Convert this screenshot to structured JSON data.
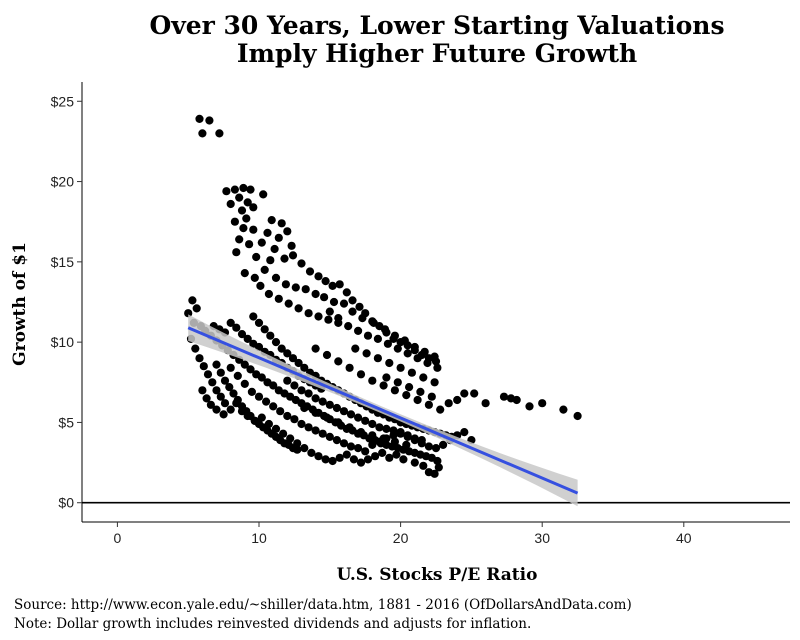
{
  "chart_data": {
    "type": "scatter",
    "title_lines": [
      "Over 30 Years, Lower Starting Valuations",
      "Imply Higher Future Growth"
    ],
    "xlabel": "U.S. Stocks P/E Ratio",
    "ylabel": "Growth of $1",
    "xlim": [
      -2.5,
      47.5
    ],
    "ylim": [
      -1.2,
      26.2
    ],
    "xticks": [
      0,
      10,
      20,
      30,
      40
    ],
    "yticks": [
      0,
      5,
      10,
      15,
      20,
      25
    ],
    "ytick_labels": [
      "$0",
      "$5",
      "$10",
      "$15",
      "$20",
      "$25"
    ],
    "grid": false,
    "hline_y": 0,
    "point_color": "#000000",
    "trend": {
      "x": [
        5,
        32.5
      ],
      "y": [
        10.9,
        0.6
      ],
      "color": "#3650e0",
      "band_color": "#c8c8c8"
    },
    "points": [
      [
        5.8,
        23.9
      ],
      [
        6.5,
        23.8
      ],
      [
        6.0,
        23.0
      ],
      [
        7.2,
        23.0
      ],
      [
        7.7,
        19.4
      ],
      [
        8.3,
        19.5
      ],
      [
        8.9,
        19.6
      ],
      [
        9.4,
        19.5
      ],
      [
        10.3,
        19.2
      ],
      [
        8.6,
        19.0
      ],
      [
        9.2,
        18.7
      ],
      [
        9.6,
        18.4
      ],
      [
        8.0,
        18.6
      ],
      [
        8.8,
        18.2
      ],
      [
        9.1,
        17.7
      ],
      [
        10.9,
        17.6
      ],
      [
        11.6,
        17.4
      ],
      [
        8.3,
        17.5
      ],
      [
        8.9,
        17.1
      ],
      [
        9.6,
        17.0
      ],
      [
        10.6,
        16.8
      ],
      [
        11.4,
        16.5
      ],
      [
        12.0,
        16.9
      ],
      [
        8.6,
        16.4
      ],
      [
        9.3,
        16.1
      ],
      [
        10.2,
        16.2
      ],
      [
        11.1,
        15.8
      ],
      [
        12.3,
        16.0
      ],
      [
        8.4,
        15.6
      ],
      [
        9.8,
        15.3
      ],
      [
        10.8,
        15.1
      ],
      [
        11.8,
        15.2
      ],
      [
        12.4,
        15.4
      ],
      [
        13.0,
        14.9
      ],
      [
        13.6,
        14.4
      ],
      [
        14.2,
        14.1
      ],
      [
        14.7,
        13.8
      ],
      [
        15.2,
        13.5
      ],
      [
        15.7,
        13.6
      ],
      [
        16.2,
        13.1
      ],
      [
        16.6,
        12.6
      ],
      [
        17.1,
        12.2
      ],
      [
        17.5,
        11.8
      ],
      [
        18.0,
        11.3
      ],
      [
        18.5,
        11.0
      ],
      [
        19.0,
        10.6
      ],
      [
        19.5,
        10.2
      ],
      [
        20.0,
        10.0
      ],
      [
        20.5,
        9.8
      ],
      [
        21.0,
        9.5
      ],
      [
        21.5,
        9.2
      ],
      [
        22.0,
        9.0
      ],
      [
        22.5,
        8.8
      ],
      [
        9.0,
        14.3
      ],
      [
        9.7,
        14.0
      ],
      [
        10.4,
        14.5
      ],
      [
        11.2,
        14.0
      ],
      [
        11.9,
        13.6
      ],
      [
        12.6,
        13.4
      ],
      [
        13.3,
        13.3
      ],
      [
        14.0,
        13.0
      ],
      [
        14.6,
        12.8
      ],
      [
        15.3,
        12.5
      ],
      [
        10.1,
        13.5
      ],
      [
        10.7,
        13.0
      ],
      [
        11.4,
        12.7
      ],
      [
        12.1,
        12.4
      ],
      [
        12.8,
        12.1
      ],
      [
        13.5,
        11.8
      ],
      [
        14.2,
        11.6
      ],
      [
        14.9,
        11.4
      ],
      [
        15.6,
        11.2
      ],
      [
        16.3,
        11.0
      ],
      [
        17.0,
        10.7
      ],
      [
        17.7,
        10.4
      ],
      [
        18.4,
        10.2
      ],
      [
        19.1,
        9.9
      ],
      [
        19.8,
        9.6
      ],
      [
        20.5,
        9.3
      ],
      [
        21.2,
        9.0
      ],
      [
        21.9,
        8.7
      ],
      [
        22.6,
        8.4
      ],
      [
        5.0,
        11.8
      ],
      [
        5.3,
        12.6
      ],
      [
        5.6,
        12.1
      ],
      [
        5.4,
        11.2
      ],
      [
        5.9,
        11.0
      ],
      [
        6.2,
        10.7
      ],
      [
        6.6,
        10.4
      ],
      [
        7.0,
        10.1
      ],
      [
        7.4,
        9.8
      ],
      [
        7.8,
        9.5
      ],
      [
        8.2,
        9.2
      ],
      [
        8.6,
        8.9
      ],
      [
        9.0,
        8.6
      ],
      [
        9.4,
        8.3
      ],
      [
        9.8,
        8.0
      ],
      [
        10.2,
        7.8
      ],
      [
        10.6,
        7.5
      ],
      [
        11.0,
        7.3
      ],
      [
        11.4,
        7.0
      ],
      [
        11.8,
        6.8
      ],
      [
        12.2,
        6.6
      ],
      [
        12.6,
        6.4
      ],
      [
        13.0,
        6.2
      ],
      [
        13.4,
        6.0
      ],
      [
        13.8,
        5.8
      ],
      [
        14.2,
        5.6
      ],
      [
        14.6,
        5.4
      ],
      [
        15.0,
        5.2
      ],
      [
        15.4,
        5.0
      ],
      [
        15.8,
        4.8
      ],
      [
        16.2,
        4.6
      ],
      [
        16.6,
        4.5
      ],
      [
        17.0,
        4.3
      ],
      [
        17.4,
        4.2
      ],
      [
        17.8,
        4.0
      ],
      [
        18.2,
        3.9
      ],
      [
        18.6,
        3.7
      ],
      [
        19.0,
        3.6
      ],
      [
        19.4,
        3.5
      ],
      [
        19.8,
        3.4
      ],
      [
        20.2,
        3.3
      ],
      [
        20.6,
        3.2
      ],
      [
        21.0,
        3.1
      ],
      [
        21.4,
        3.0
      ],
      [
        21.8,
        2.9
      ],
      [
        22.2,
        2.8
      ],
      [
        22.6,
        2.6
      ],
      [
        5.2,
        10.2
      ],
      [
        5.5,
        9.6
      ],
      [
        5.8,
        9.0
      ],
      [
        6.1,
        8.5
      ],
      [
        6.4,
        8.0
      ],
      [
        6.7,
        7.5
      ],
      [
        7.0,
        7.0
      ],
      [
        7.3,
        6.6
      ],
      [
        7.6,
        6.2
      ],
      [
        6.0,
        7.0
      ],
      [
        6.3,
        6.5
      ],
      [
        6.6,
        6.1
      ],
      [
        7.0,
        5.8
      ],
      [
        7.5,
        5.5
      ],
      [
        8.0,
        5.8
      ],
      [
        8.4,
        6.2
      ],
      [
        8.8,
        5.7
      ],
      [
        9.2,
        5.4
      ],
      [
        9.7,
        5.1
      ],
      [
        10.2,
        5.3
      ],
      [
        10.7,
        4.9
      ],
      [
        11.2,
        4.6
      ],
      [
        11.7,
        4.3
      ],
      [
        12.2,
        4.0
      ],
      [
        12.7,
        3.7
      ],
      [
        13.2,
        3.4
      ],
      [
        13.7,
        3.1
      ],
      [
        14.2,
        2.9
      ],
      [
        14.7,
        2.7
      ],
      [
        15.2,
        2.6
      ],
      [
        15.7,
        2.8
      ],
      [
        16.2,
        3.0
      ],
      [
        16.7,
        2.7
      ],
      [
        17.2,
        2.5
      ],
      [
        17.7,
        2.7
      ],
      [
        18.2,
        2.9
      ],
      [
        18.7,
        3.1
      ],
      [
        19.2,
        2.8
      ],
      [
        19.7,
        3.0
      ],
      [
        20.2,
        2.7
      ],
      [
        21.0,
        2.5
      ],
      [
        21.6,
        2.3
      ],
      [
        22.0,
        1.9
      ],
      [
        22.4,
        1.8
      ],
      [
        22.7,
        2.2
      ],
      [
        8.0,
        8.4
      ],
      [
        8.5,
        7.9
      ],
      [
        9.0,
        7.4
      ],
      [
        9.5,
        6.9
      ],
      [
        10.0,
        6.6
      ],
      [
        10.5,
        6.3
      ],
      [
        11.0,
        6.0
      ],
      [
        11.5,
        5.7
      ],
      [
        12.0,
        5.4
      ],
      [
        12.5,
        5.2
      ],
      [
        13.0,
        4.9
      ],
      [
        13.5,
        4.7
      ],
      [
        14.0,
        4.5
      ],
      [
        14.5,
        4.3
      ],
      [
        15.0,
        4.1
      ],
      [
        15.5,
        3.9
      ],
      [
        16.0,
        3.7
      ],
      [
        16.5,
        3.5
      ],
      [
        17.0,
        3.4
      ],
      [
        17.5,
        3.2
      ],
      [
        18.0,
        3.6
      ],
      [
        18.5,
        3.8
      ],
      [
        19.0,
        4.0
      ],
      [
        19.5,
        4.2
      ],
      [
        20.0,
        4.4
      ],
      [
        20.5,
        4.1
      ],
      [
        21.0,
        3.9
      ],
      [
        21.5,
        3.7
      ],
      [
        22.0,
        3.5
      ],
      [
        22.5,
        3.4
      ],
      [
        23.0,
        3.6
      ],
      [
        23.5,
        3.9
      ],
      [
        24.0,
        4.2
      ],
      [
        24.5,
        4.4
      ],
      [
        25.0,
        3.9
      ],
      [
        9.6,
        11.6
      ],
      [
        10.0,
        11.2
      ],
      [
        10.4,
        10.8
      ],
      [
        10.8,
        10.4
      ],
      [
        11.2,
        10.0
      ],
      [
        11.6,
        9.6
      ],
      [
        12.0,
        9.3
      ],
      [
        12.4,
        9.0
      ],
      [
        12.8,
        8.7
      ],
      [
        13.2,
        8.4
      ],
      [
        13.6,
        8.1
      ],
      [
        14.0,
        7.9
      ],
      [
        14.4,
        7.6
      ],
      [
        14.8,
        7.4
      ],
      [
        15.2,
        7.2
      ],
      [
        15.6,
        7.0
      ],
      [
        16.0,
        6.8
      ],
      [
        16.4,
        6.6
      ],
      [
        16.8,
        6.4
      ],
      [
        17.2,
        6.2
      ],
      [
        17.6,
        6.0
      ],
      [
        18.0,
        5.8
      ],
      [
        18.4,
        5.6
      ],
      [
        18.8,
        5.5
      ],
      [
        19.2,
        5.3
      ],
      [
        19.6,
        5.2
      ],
      [
        20.0,
        5.0
      ],
      [
        20.4,
        4.9
      ],
      [
        20.8,
        4.8
      ],
      [
        21.2,
        4.7
      ],
      [
        21.6,
        4.6
      ],
      [
        22.0,
        4.5
      ],
      [
        22.4,
        4.4
      ],
      [
        22.8,
        4.3
      ],
      [
        23.2,
        4.2
      ],
      [
        23.6,
        4.1
      ],
      [
        12.0,
        7.6
      ],
      [
        12.5,
        7.3
      ],
      [
        13.0,
        7.0
      ],
      [
        13.5,
        6.8
      ],
      [
        14.0,
        6.5
      ],
      [
        14.5,
        6.3
      ],
      [
        15.0,
        6.1
      ],
      [
        15.5,
        5.9
      ],
      [
        16.0,
        5.7
      ],
      [
        16.5,
        5.5
      ],
      [
        17.0,
        5.3
      ],
      [
        17.5,
        5.1
      ],
      [
        18.0,
        4.9
      ],
      [
        18.5,
        4.7
      ],
      [
        19.0,
        4.6
      ],
      [
        19.5,
        4.5
      ],
      [
        20.0,
        4.3
      ],
      [
        20.5,
        4.2
      ],
      [
        21.0,
        4.0
      ],
      [
        21.5,
        3.9
      ],
      [
        13.2,
        5.9
      ],
      [
        14.0,
        5.6
      ],
      [
        14.8,
        5.3
      ],
      [
        15.6,
        5.0
      ],
      [
        16.4,
        4.7
      ],
      [
        17.2,
        4.4
      ],
      [
        18.0,
        4.2
      ],
      [
        18.8,
        4.0
      ],
      [
        19.6,
        3.8
      ],
      [
        20.4,
        3.6
      ],
      [
        14.0,
        9.6
      ],
      [
        14.8,
        9.2
      ],
      [
        15.6,
        8.8
      ],
      [
        16.4,
        8.4
      ],
      [
        17.2,
        8.0
      ],
      [
        18.0,
        7.6
      ],
      [
        18.8,
        7.3
      ],
      [
        19.6,
        7.0
      ],
      [
        20.4,
        6.7
      ],
      [
        21.2,
        6.4
      ],
      [
        22.0,
        6.1
      ],
      [
        22.8,
        5.8
      ],
      [
        23.4,
        6.2
      ],
      [
        24.0,
        6.4
      ],
      [
        24.5,
        6.8
      ],
      [
        25.2,
        6.8
      ],
      [
        26.0,
        6.2
      ],
      [
        27.3,
        6.6
      ],
      [
        27.8,
        6.5
      ],
      [
        28.2,
        6.4
      ],
      [
        29.1,
        6.0
      ],
      [
        30.0,
        6.2
      ],
      [
        31.5,
        5.8
      ],
      [
        32.5,
        5.4
      ],
      [
        6.8,
        11.0
      ],
      [
        7.2,
        10.8
      ],
      [
        7.6,
        10.6
      ],
      [
        8.0,
        11.2
      ],
      [
        8.4,
        10.9
      ],
      [
        8.8,
        10.5
      ],
      [
        9.2,
        10.2
      ],
      [
        9.6,
        9.9
      ],
      [
        10.0,
        9.7
      ],
      [
        10.4,
        9.4
      ],
      [
        10.8,
        9.2
      ],
      [
        11.2,
        8.9
      ],
      [
        11.6,
        8.7
      ],
      [
        12.0,
        8.4
      ],
      [
        12.4,
        8.2
      ],
      [
        12.8,
        7.9
      ],
      [
        13.2,
        7.7
      ],
      [
        13.6,
        7.5
      ],
      [
        14.0,
        7.3
      ],
      [
        14.4,
        7.1
      ],
      [
        15.0,
        11.9
      ],
      [
        15.6,
        11.5
      ],
      [
        16.0,
        12.4
      ],
      [
        16.6,
        11.9
      ],
      [
        17.3,
        11.5
      ],
      [
        18.1,
        11.2
      ],
      [
        18.9,
        10.8
      ],
      [
        19.6,
        10.4
      ],
      [
        20.3,
        10.1
      ],
      [
        21.0,
        9.7
      ],
      [
        21.7,
        9.4
      ],
      [
        22.4,
        9.1
      ],
      [
        16.8,
        9.6
      ],
      [
        17.6,
        9.3
      ],
      [
        18.4,
        9.0
      ],
      [
        19.2,
        8.7
      ],
      [
        20.0,
        8.4
      ],
      [
        20.8,
        8.1
      ],
      [
        21.6,
        7.8
      ],
      [
        22.4,
        7.5
      ],
      [
        19.0,
        7.8
      ],
      [
        19.8,
        7.5
      ],
      [
        20.6,
        7.2
      ],
      [
        21.4,
        6.9
      ],
      [
        22.2,
        6.6
      ],
      [
        7.0,
        8.6
      ],
      [
        7.3,
        8.1
      ],
      [
        7.6,
        7.6
      ],
      [
        7.9,
        7.2
      ],
      [
        8.2,
        6.8
      ],
      [
        8.5,
        6.4
      ],
      [
        8.8,
        6.0
      ],
      [
        9.1,
        5.7
      ],
      [
        9.4,
        5.4
      ],
      [
        9.7,
        5.1
      ],
      [
        10.0,
        4.9
      ],
      [
        10.3,
        4.7
      ],
      [
        10.6,
        4.5
      ],
      [
        10.9,
        4.3
      ],
      [
        11.2,
        4.1
      ],
      [
        11.5,
        3.9
      ],
      [
        11.8,
        3.7
      ],
      [
        12.1,
        3.6
      ],
      [
        12.4,
        3.4
      ],
      [
        12.7,
        3.3
      ]
    ]
  },
  "caption": {
    "source": "Source:  http://www.econ.yale.edu/~shiller/data.htm, 1881 - 2016 (OfDollarsAndData.com)",
    "note": "Note:  Dollar growth includes reinvested dividends and adjusts for inflation."
  }
}
